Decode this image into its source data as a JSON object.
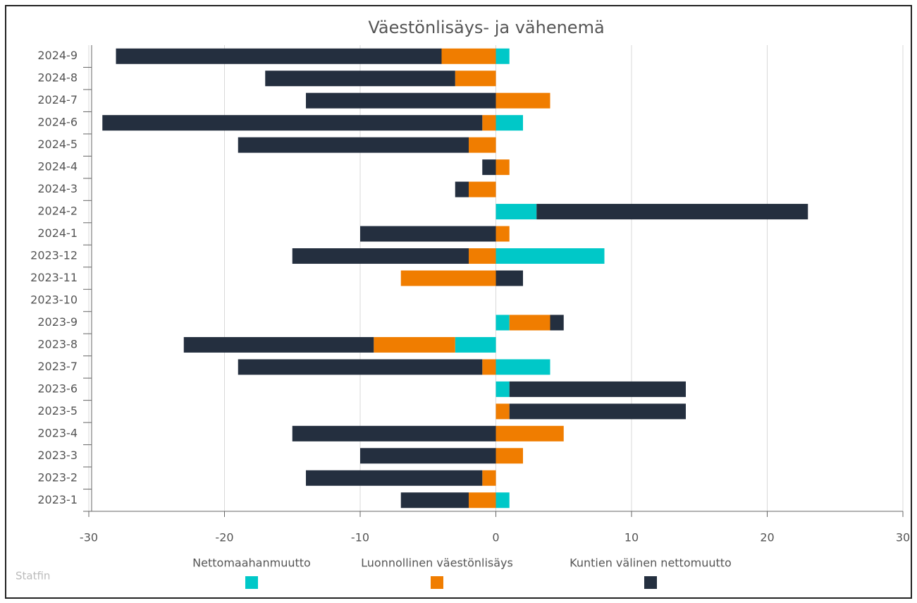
{
  "chart_data": {
    "type": "bar",
    "orientation": "horizontal",
    "stacked": true,
    "title": "Väestönlisäys- ja vähenemä",
    "credits": "Statfin",
    "categories": [
      "2024-9",
      "2024-8",
      "2024-7",
      "2024-6",
      "2024-5",
      "2024-4",
      "2024-3",
      "2024-2",
      "2024-1",
      "2023-12",
      "2023-11",
      "2023-10",
      "2023-9",
      "2023-8",
      "2023-7",
      "2023-6",
      "2023-5",
      "2023-4",
      "2023-3",
      "2023-2",
      "2023-1"
    ],
    "series": [
      {
        "name": "Nettomaahanmuutto",
        "color": "#00c8c8",
        "values": [
          1,
          0,
          0,
          2,
          0,
          0,
          0,
          3,
          0,
          8,
          0,
          0,
          1,
          -3,
          4,
          1,
          0,
          0,
          0,
          0,
          1
        ]
      },
      {
        "name": "Luonnollinen väestönlisäys",
        "color": "#f07d00",
        "values": [
          -4,
          -3,
          4,
          -1,
          -2,
          1,
          -2,
          0,
          1,
          -2,
          -7,
          0,
          3,
          -6,
          -1,
          0,
          1,
          5,
          2,
          -1,
          -2
        ]
      },
      {
        "name": "Kuntien välinen nettomuutto",
        "color": "#242f3f",
        "values": [
          -24,
          -14,
          -14,
          -28,
          -17,
          -1,
          -1,
          20,
          -10,
          -13,
          2,
          0,
          1,
          -14,
          -18,
          13,
          13,
          -15,
          -10,
          -13,
          -5
        ]
      }
    ],
    "xlim": [
      -30,
      30
    ],
    "xticks": [
      -30,
      -20,
      -10,
      0,
      10,
      20,
      30
    ],
    "grid": true
  }
}
